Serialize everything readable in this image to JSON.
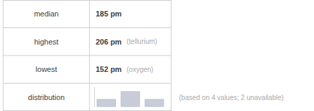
{
  "chart_data": {
    "type": "bar",
    "categories": [
      null,
      null,
      null
    ],
    "values": [
      1,
      2,
      1
    ],
    "color": "#c8ccd8",
    "ylim": [
      0,
      2.5
    ],
    "grid": false,
    "tick_labels": false,
    "annotations": [
      "median",
      "185 pm",
      "highest",
      "206 pm",
      "(tellurium)",
      "lowest",
      "152 pm",
      "(oxygen)",
      "distribution",
      "(based on 4 values; 2 unavailable)"
    ]
  }
}
